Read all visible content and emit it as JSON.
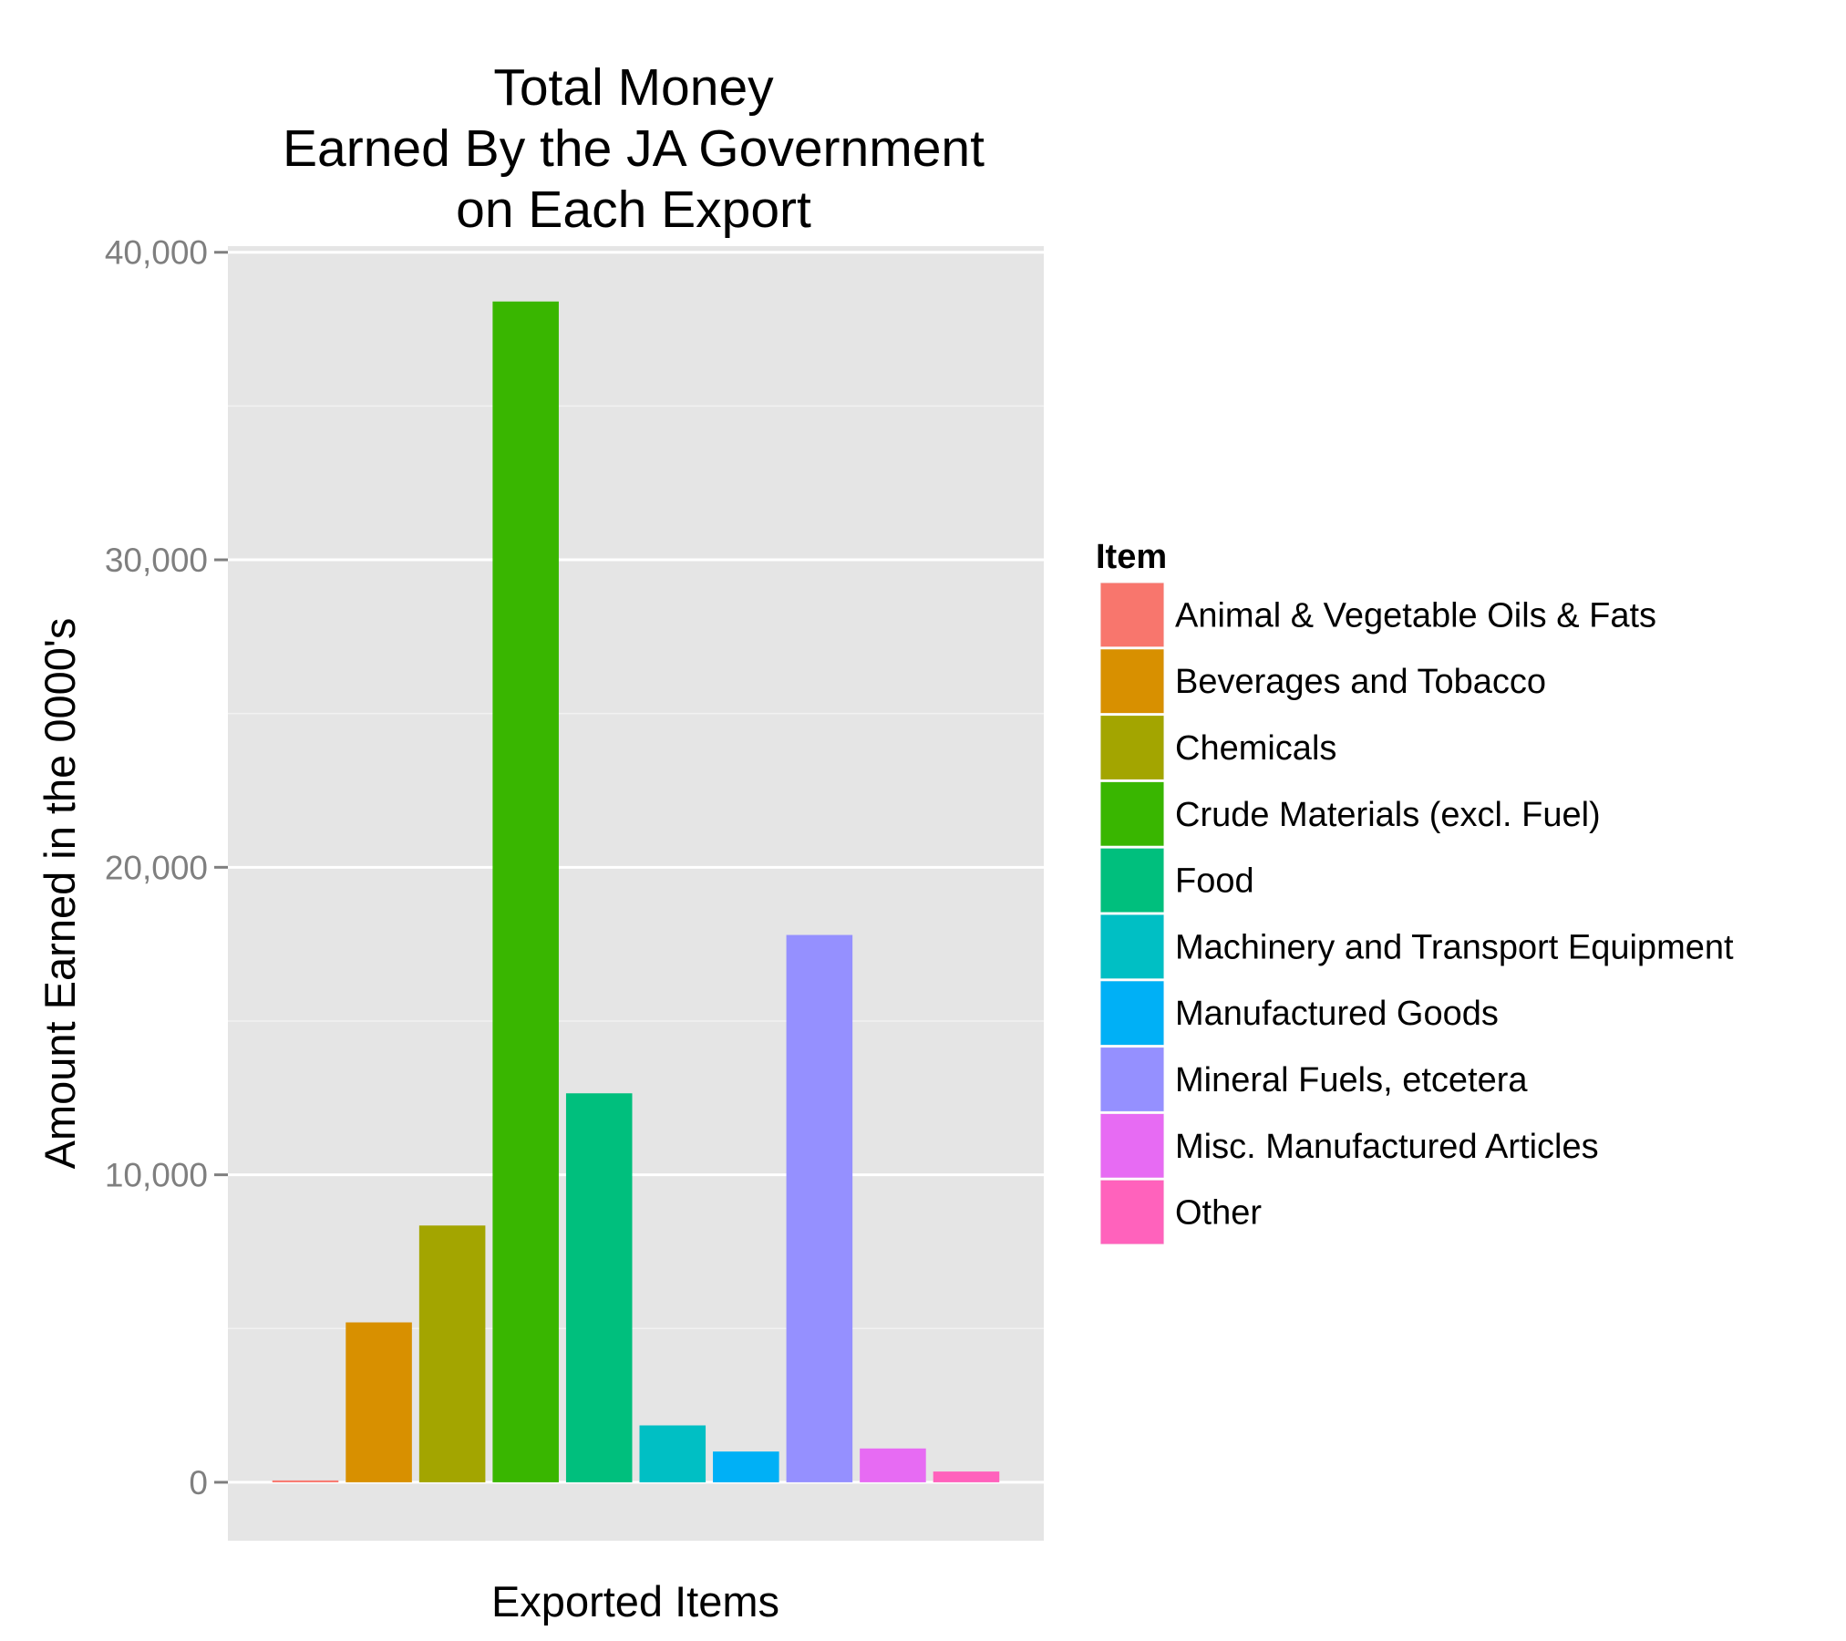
{
  "chart_data": {
    "type": "bar",
    "title_lines": [
      "Total Money",
      "Earned By the JA Government",
      "on Each Export"
    ],
    "xlabel": "Exported Items",
    "ylabel": "Amount Earned in the 0000's",
    "ylim": [
      -1900,
      40200
    ],
    "y_ticks": [
      0,
      10000,
      20000,
      30000,
      40000
    ],
    "y_tick_labels": [
      "0",
      "10,000",
      "20,000",
      "30,000",
      "40,000"
    ],
    "grid": true,
    "panel_background": "#e5e5e5",
    "legend": {
      "title": "Item",
      "position": "right"
    },
    "categories": [
      "Animal & Vegetable Oils & Fats",
      "Beverages and Tobacco",
      "Chemicals",
      "Crude Materials (excl. Fuel)",
      "Food",
      "Machinery and Transport Equipment",
      "Manufactured Goods",
      "Mineral Fuels, etcetera",
      "Misc. Manufactured Articles",
      "Other"
    ],
    "values": [
      60,
      5200,
      8350,
      38400,
      12650,
      1850,
      1000,
      17800,
      1100,
      350
    ],
    "colors": [
      "#F8766D",
      "#D89000",
      "#A3A500",
      "#39B600",
      "#00BF7D",
      "#00BFC4",
      "#00B0F6",
      "#9590FF",
      "#E76BF3",
      "#FF62BC"
    ]
  }
}
